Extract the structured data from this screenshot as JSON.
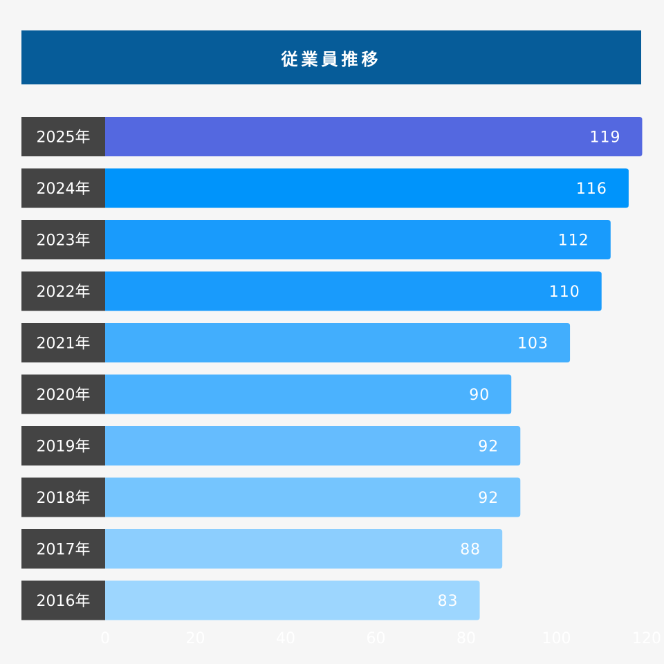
{
  "title": "従業員推移",
  "chart_data": {
    "type": "bar",
    "orientation": "horizontal",
    "title": "従業員推移",
    "categories": [
      "2025年",
      "2024年",
      "2023年",
      "2022年",
      "2021年",
      "2020年",
      "2019年",
      "2018年",
      "2017年",
      "2016年"
    ],
    "values": [
      119,
      116,
      112,
      110,
      103,
      90,
      92,
      92,
      88,
      83
    ],
    "bar_colors": [
      "#5468e0",
      "#0094fb",
      "#199bfc",
      "#199bfc",
      "#42aefd",
      "#4bb2fe",
      "#65bcfe",
      "#75c5fe",
      "#8ccefe",
      "#9dd6fe"
    ],
    "xlim": [
      0,
      120
    ],
    "xticks": [
      0,
      20,
      40,
      60,
      80,
      100,
      120
    ],
    "xtick_labels": [
      "0",
      "20",
      "40",
      "60",
      "80",
      "100",
      "120"
    ],
    "xlabel": "",
    "ylabel": "",
    "grid": false,
    "data_labels": true
  },
  "colors": {
    "title_bg": "#065c99",
    "category_bg": "#444444",
    "background": "#f6f6f6",
    "text": "#ffffff"
  }
}
